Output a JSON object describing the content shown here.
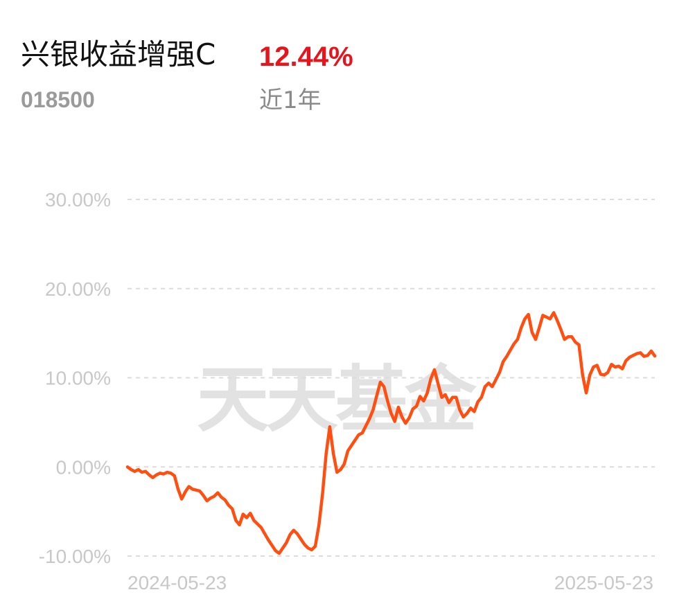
{
  "header": {
    "fund_name": "兴银收益增强C",
    "fund_code": "018500",
    "return_value": "12.44%",
    "period_label": "近1年"
  },
  "watermark": "天天基金",
  "colors": {
    "return_text": "#e8141b",
    "line": "#ff4e0f",
    "grid": "#dcdcdc",
    "tick_text": "#c8c8c8"
  },
  "chart_data": {
    "type": "line",
    "title": "",
    "xlabel": "",
    "ylabel": "",
    "ylim": [
      -10,
      30
    ],
    "yticks": [
      30,
      20,
      10,
      0,
      -10
    ],
    "ytick_labels": [
      "30.00%",
      "20.00%",
      "10.00%",
      "0.00%",
      "-10.00%"
    ],
    "x_start_label": "2024-05-23",
    "x_end_label": "2025-05-23",
    "grid": "horizontal dashed",
    "series": [
      {
        "values": [
          0.0,
          -0.3,
          -0.5,
          -0.3,
          -0.6,
          -0.5,
          -0.9,
          -1.2,
          -0.9,
          -0.7,
          -0.8,
          -0.6,
          -0.7,
          -1.0,
          -2.5,
          -3.6,
          -2.8,
          -2.2,
          -2.5,
          -2.6,
          -2.7,
          -3.2,
          -3.8,
          -3.5,
          -3.3,
          -2.9,
          -3.4,
          -3.7,
          -4.3,
          -4.7,
          -6.0,
          -6.5,
          -5.3,
          -5.7,
          -5.2,
          -6.0,
          -6.4,
          -6.8,
          -7.5,
          -8.2,
          -8.8,
          -9.4,
          -9.7,
          -9.1,
          -8.5,
          -7.6,
          -7.1,
          -7.5,
          -8.1,
          -8.7,
          -9.1,
          -9.3,
          -8.9,
          -6.5,
          -3.0,
          1.5,
          4.5,
          1.5,
          -0.6,
          -0.3,
          0.3,
          1.8,
          2.4,
          3.0,
          3.6,
          3.8,
          4.6,
          5.4,
          6.4,
          8.0,
          9.5,
          9.0,
          7.4,
          6.0,
          5.1,
          6.7,
          5.6,
          4.9,
          5.5,
          6.5,
          6.8,
          7.9,
          7.4,
          8.3,
          9.9,
          10.9,
          9.3,
          7.8,
          8.1,
          7.2,
          7.8,
          7.8,
          6.4,
          5.6,
          6.0,
          6.6,
          6.2,
          7.3,
          7.8,
          9.0,
          9.4,
          9.0,
          9.8,
          10.6,
          11.8,
          12.4,
          13.1,
          13.8,
          14.3,
          15.6,
          16.6,
          17.1,
          15.1,
          14.3,
          15.6,
          17.0,
          16.8,
          16.6,
          17.3,
          16.4,
          15.4,
          14.3,
          14.6,
          14.6,
          14.0,
          13.7,
          10.3,
          8.3,
          10.3,
          11.2,
          11.4,
          10.4,
          10.3,
          10.6,
          11.5,
          11.2,
          11.3,
          11.0,
          11.9,
          12.3,
          12.5,
          12.7,
          12.8,
          12.4,
          12.5,
          13.0,
          12.44
        ]
      }
    ]
  }
}
